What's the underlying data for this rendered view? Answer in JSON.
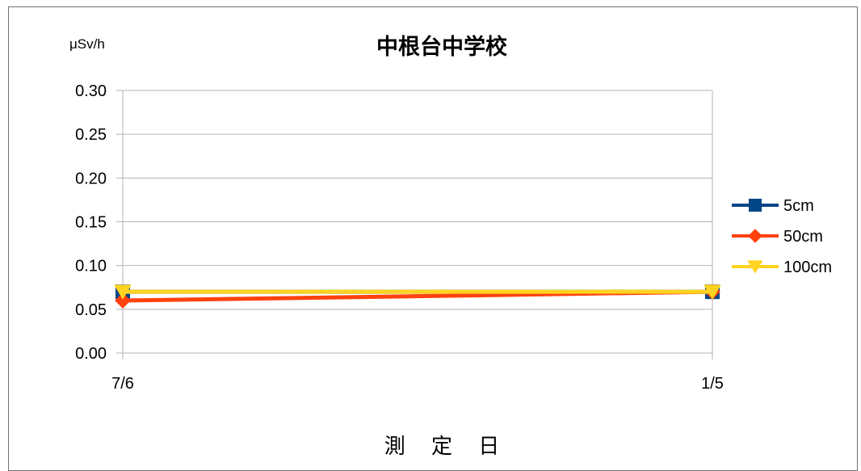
{
  "chart_data": {
    "type": "line",
    "title": "中根台中学校",
    "unit_label": "μSv/h",
    "xlabel": "測 定 日",
    "categories": [
      "7/6",
      "1/5"
    ],
    "ylim": [
      0,
      0.3
    ],
    "yticks": [
      "0.00",
      "0.05",
      "0.10",
      "0.15",
      "0.20",
      "0.25",
      "0.30"
    ],
    "grid": true,
    "legend_position": "right",
    "series": [
      {
        "name": "5cm",
        "values": [
          0.07,
          0.07
        ],
        "color": "#004586",
        "marker": "square"
      },
      {
        "name": "50cm",
        "values": [
          0.06,
          0.07
        ],
        "color": "#ff420e",
        "marker": "diamond"
      },
      {
        "name": "100cm",
        "values": [
          0.07,
          0.07
        ],
        "color": "#ffd320",
        "marker": "triangle-down"
      }
    ]
  }
}
